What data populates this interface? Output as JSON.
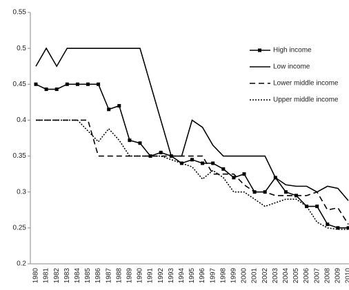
{
  "chart_data": {
    "type": "line",
    "categories": [
      "1980",
      "1981",
      "1982",
      "1983",
      "1984",
      "1985",
      "1986",
      "1987",
      "1988",
      "1989",
      "1990",
      "1991",
      "1992",
      "1993",
      "1994",
      "1995",
      "1996",
      "1997",
      "1998",
      "1999",
      "2000",
      "2001",
      "2002",
      "2003",
      "2004",
      "2005",
      "2006",
      "2007",
      "2008",
      "2009",
      "2010"
    ],
    "series": [
      {
        "name": "High income",
        "color": "#000000",
        "style": "solid",
        "marker": "square",
        "values": [
          0.45,
          0.443,
          0.443,
          0.45,
          0.45,
          0.45,
          0.45,
          0.415,
          0.42,
          0.372,
          0.368,
          0.35,
          0.355,
          0.35,
          0.34,
          0.345,
          0.34,
          0.34,
          0.332,
          0.32,
          0.325,
          0.3,
          0.3,
          0.32,
          0.3,
          0.295,
          0.28,
          0.28,
          0.255,
          0.25,
          0.25
        ]
      },
      {
        "name": "Low income",
        "color": "#000000",
        "style": "solid",
        "values": [
          0.475,
          0.5,
          0.475,
          0.5,
          0.5,
          0.5,
          0.5,
          0.5,
          0.5,
          0.5,
          0.5,
          0.45,
          0.4,
          0.35,
          0.35,
          0.4,
          0.39,
          0.365,
          0.35,
          0.35,
          0.35,
          0.35,
          0.35,
          0.32,
          0.31,
          0.308,
          0.308,
          0.3,
          0.308,
          0.305,
          0.288
        ]
      },
      {
        "name": "Lower middle income",
        "color": "#000000",
        "style": "dashed",
        "values": [
          0.4,
          0.4,
          0.4,
          0.4,
          0.4,
          0.4,
          0.35,
          0.35,
          0.35,
          0.35,
          0.35,
          0.35,
          0.35,
          0.35,
          0.35,
          0.35,
          0.35,
          0.325,
          0.325,
          0.325,
          0.31,
          0.3,
          0.3,
          0.295,
          0.295,
          0.295,
          0.295,
          0.3,
          0.275,
          0.278,
          0.255
        ]
      },
      {
        "name": "Upper middle income",
        "color": "#000000",
        "style": "dotted",
        "values": [
          0.4,
          0.4,
          0.4,
          0.4,
          0.4,
          0.385,
          0.37,
          0.388,
          0.372,
          0.35,
          0.35,
          0.35,
          0.35,
          0.345,
          0.34,
          0.335,
          0.318,
          0.33,
          0.32,
          0.3,
          0.3,
          0.29,
          0.28,
          0.285,
          0.29,
          0.29,
          0.28,
          0.258,
          0.25,
          0.248,
          0.248
        ]
      }
    ],
    "ylim": [
      0.2,
      0.55
    ],
    "yticks": [
      0.2,
      0.25,
      0.3,
      0.35,
      0.4,
      0.45,
      0.5,
      0.55
    ],
    "grid": false,
    "legend": "upper right"
  }
}
